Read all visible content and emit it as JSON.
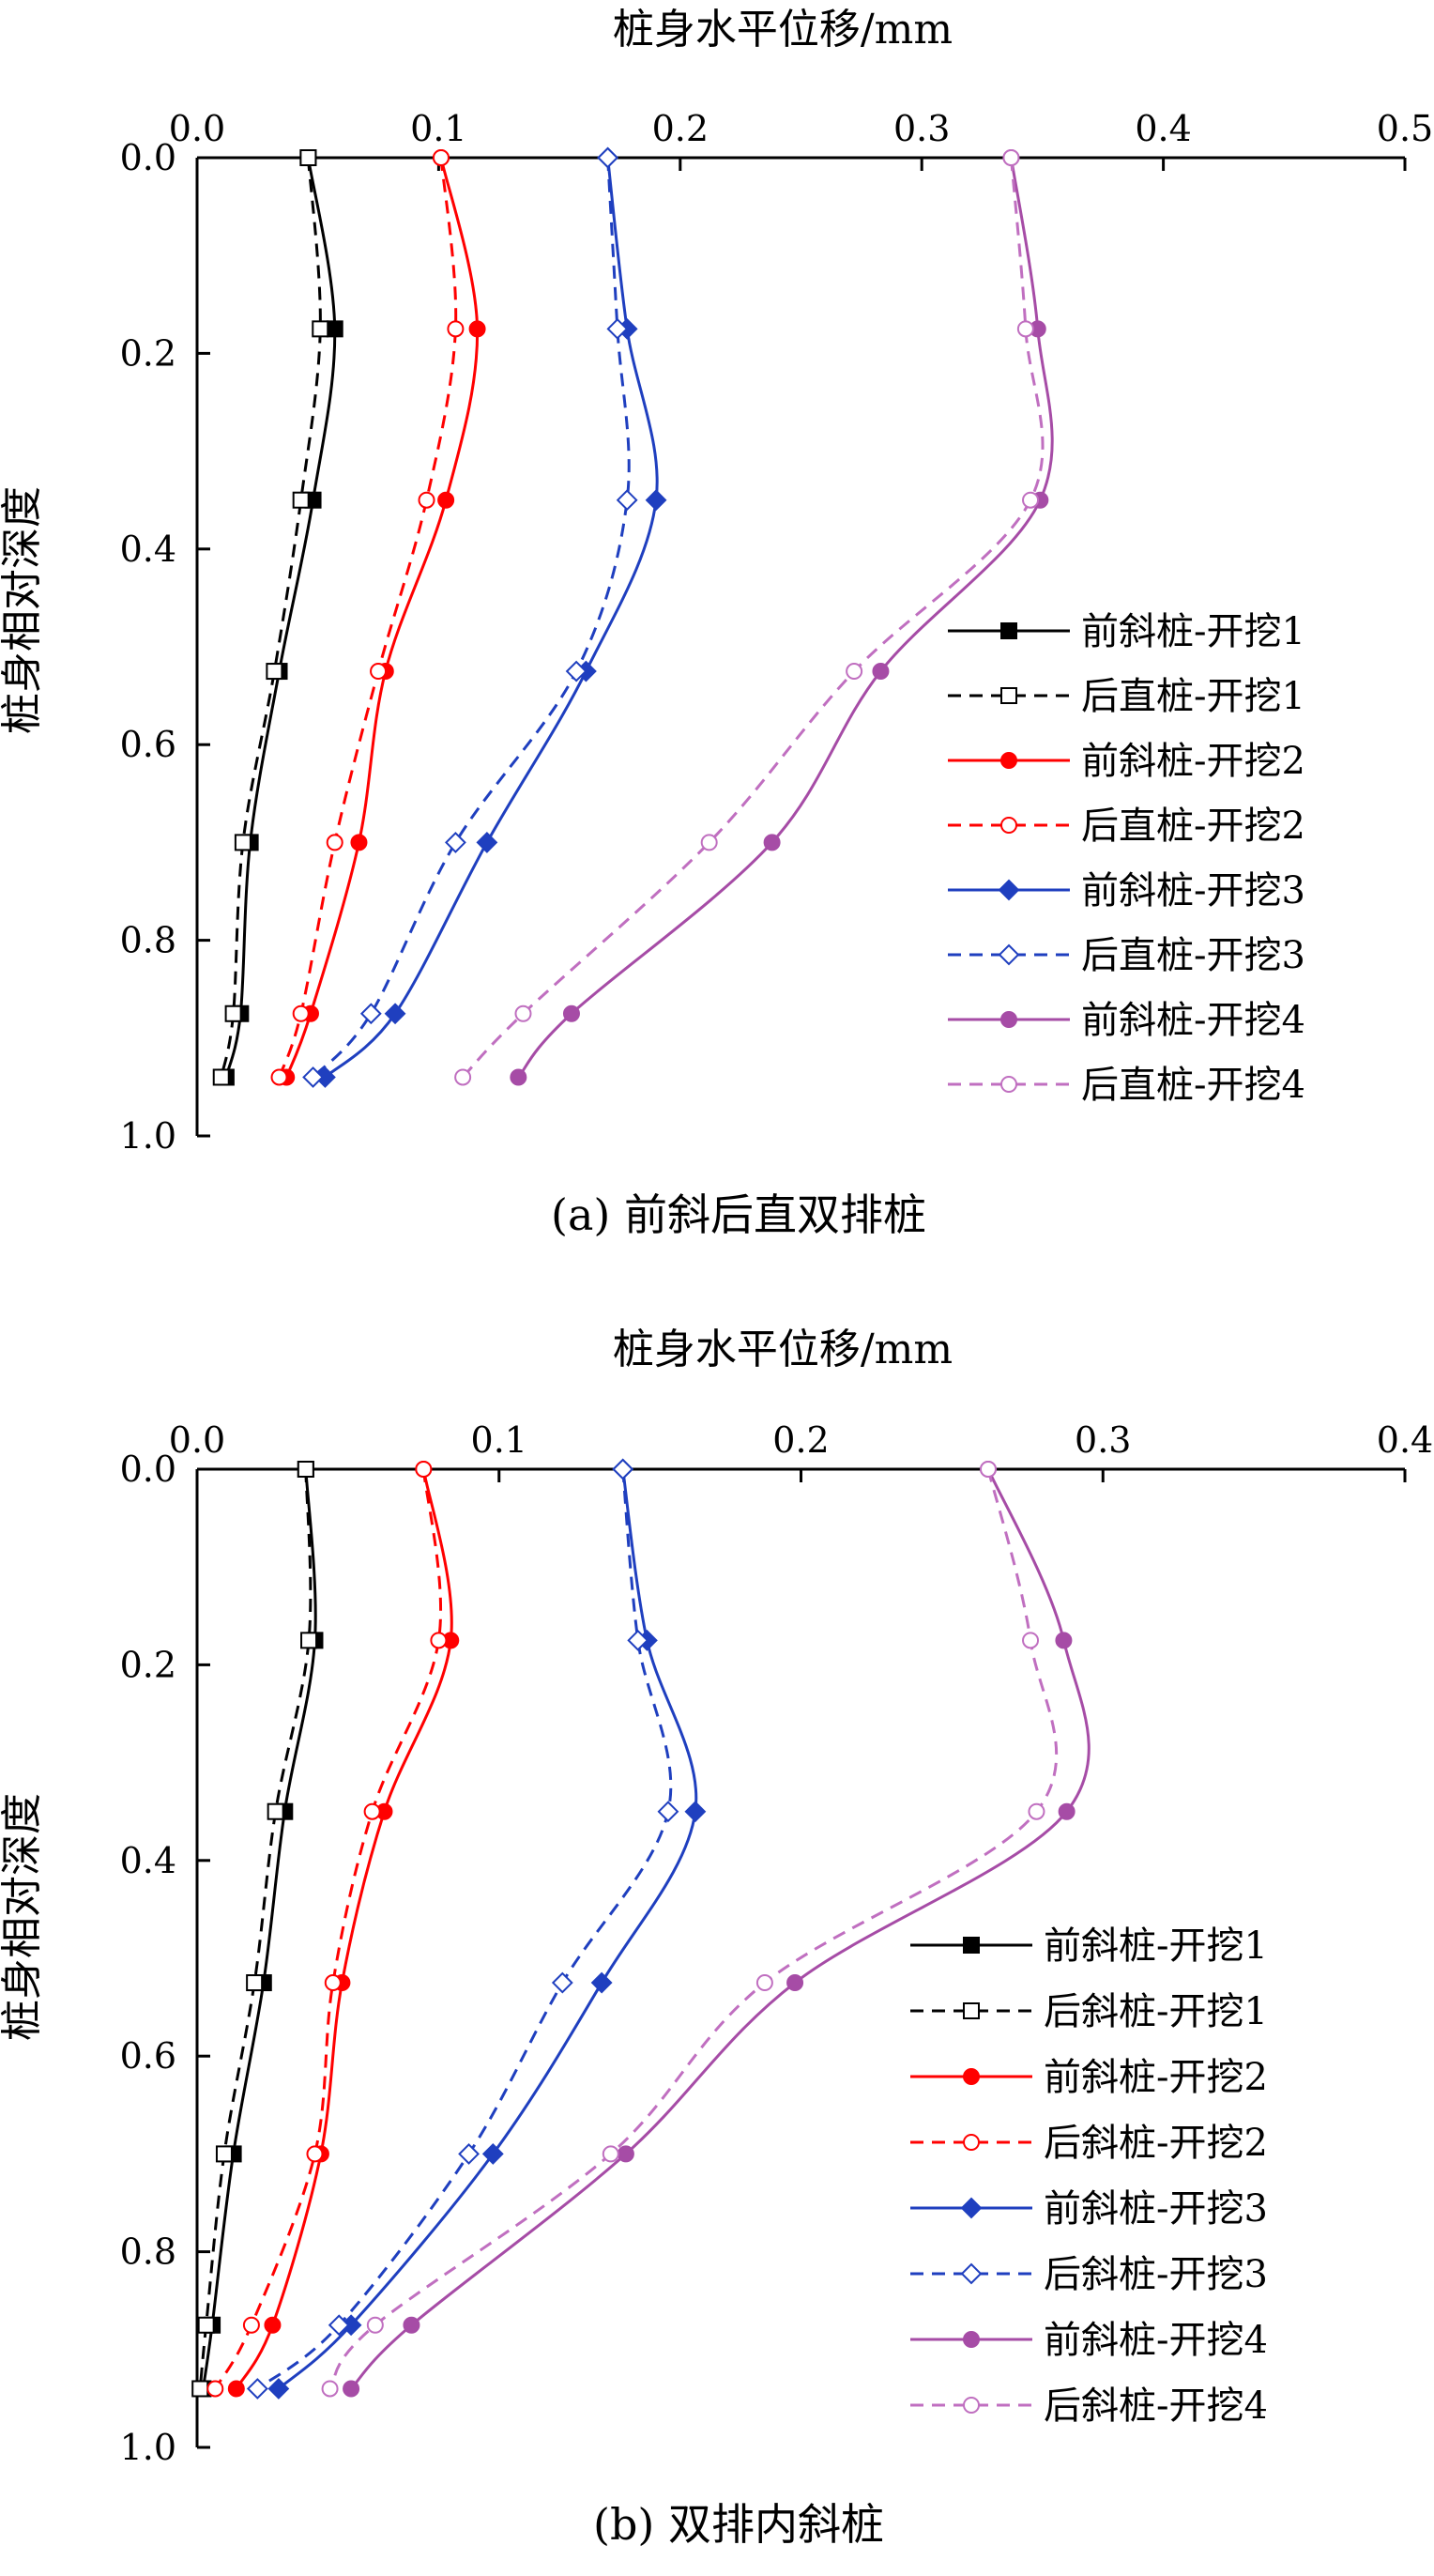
{
  "chart_data": [
    {
      "type": "line",
      "caption": "(a) 前斜后直双排桩",
      "xlabel": "桩身水平位移/mm",
      "ylabel": "桩身相对深度",
      "xlim": [
        0,
        0.5
      ],
      "ylim": [
        0,
        1.0
      ],
      "x_axis_position": "top",
      "y_axis_inverted": true,
      "x_ticks": [
        "0.0",
        "0.1",
        "0.2",
        "0.3",
        "0.4",
        "0.5"
      ],
      "y_ticks": [
        "0.0",
        "0.2",
        "0.4",
        "0.6",
        "0.8",
        "1.0"
      ],
      "legend_position": "right-middle",
      "series": [
        {
          "name": "前斜桩-开挖1",
          "color": "#000000",
          "dash": "solid",
          "marker": "square-filled",
          "depth": [
            0.0,
            0.175,
            0.35,
            0.525,
            0.7,
            0.875,
            0.94
          ],
          "displacement": [
            0.046,
            0.057,
            0.048,
            0.034,
            0.022,
            0.018,
            0.012
          ]
        },
        {
          "name": "后直桩-开挖1",
          "color": "#000000",
          "dash": "dashed",
          "marker": "square-open",
          "depth": [
            0.0,
            0.175,
            0.35,
            0.525,
            0.7,
            0.875,
            0.94
          ],
          "displacement": [
            0.046,
            0.051,
            0.043,
            0.032,
            0.019,
            0.015,
            0.01
          ]
        },
        {
          "name": "前斜桩-开挖2",
          "color": "#ff0000",
          "dash": "solid",
          "marker": "circle-filled",
          "depth": [
            0.0,
            0.175,
            0.35,
            0.525,
            0.7,
            0.875,
            0.94
          ],
          "displacement": [
            0.101,
            0.116,
            0.103,
            0.078,
            0.067,
            0.047,
            0.037
          ]
        },
        {
          "name": "后直桩-开挖2",
          "color": "#ff0000",
          "dash": "dashed",
          "marker": "circle-open",
          "depth": [
            0.0,
            0.175,
            0.35,
            0.525,
            0.7,
            0.875,
            0.94
          ],
          "displacement": [
            0.101,
            0.107,
            0.095,
            0.075,
            0.057,
            0.043,
            0.034
          ]
        },
        {
          "name": "前斜桩-开挖3",
          "color": "#1f3fbf",
          "dash": "solid",
          "marker": "diamond-filled",
          "depth": [
            0.0,
            0.175,
            0.35,
            0.525,
            0.7,
            0.875,
            0.94
          ],
          "displacement": [
            0.17,
            0.178,
            0.19,
            0.161,
            0.12,
            0.082,
            0.053
          ]
        },
        {
          "name": "后直桩-开挖3",
          "color": "#1f3fbf",
          "dash": "dashed",
          "marker": "diamond-open",
          "depth": [
            0.0,
            0.175,
            0.35,
            0.525,
            0.7,
            0.875,
            0.94
          ],
          "displacement": [
            0.17,
            0.174,
            0.178,
            0.157,
            0.107,
            0.072,
            0.048
          ]
        },
        {
          "name": "前斜桩-开挖4",
          "color": "#a64ca6",
          "dash": "solid",
          "marker": "circle-filled",
          "depth": [
            0.0,
            0.175,
            0.35,
            0.525,
            0.7,
            0.875,
            0.94
          ],
          "displacement": [
            0.337,
            0.348,
            0.349,
            0.283,
            0.238,
            0.155,
            0.133
          ]
        },
        {
          "name": "后直桩-开挖4",
          "color": "#c06fc0",
          "dash": "dashed",
          "marker": "circle-open",
          "depth": [
            0.0,
            0.175,
            0.35,
            0.525,
            0.7,
            0.875,
            0.94
          ],
          "displacement": [
            0.337,
            0.343,
            0.345,
            0.272,
            0.212,
            0.135,
            0.11
          ]
        }
      ]
    },
    {
      "type": "line",
      "caption": "(b) 双排内斜桩",
      "xlabel": "桩身水平位移/mm",
      "ylabel": "桩身相对深度",
      "xlim": [
        0,
        0.4
      ],
      "ylim": [
        0,
        1.0
      ],
      "x_axis_position": "top",
      "y_axis_inverted": true,
      "x_ticks": [
        "0.0",
        "0.1",
        "0.2",
        "0.3",
        "0.4"
      ],
      "y_ticks": [
        "0.0",
        "0.2",
        "0.4",
        "0.6",
        "0.8",
        "1.0"
      ],
      "legend_position": "right-bottom",
      "series": [
        {
          "name": "前斜桩-开挖1",
          "color": "#000000",
          "dash": "solid",
          "marker": "square-filled",
          "depth": [
            0.0,
            0.175,
            0.35,
            0.525,
            0.7,
            0.875,
            0.94
          ],
          "displacement": [
            0.036,
            0.039,
            0.029,
            0.022,
            0.012,
            0.005,
            0.002
          ]
        },
        {
          "name": "后斜桩-开挖1",
          "color": "#000000",
          "dash": "dashed",
          "marker": "square-open",
          "depth": [
            0.0,
            0.175,
            0.35,
            0.525,
            0.7,
            0.875,
            0.94
          ],
          "displacement": [
            0.036,
            0.037,
            0.026,
            0.019,
            0.009,
            0.003,
            0.001
          ]
        },
        {
          "name": "前斜桩-开挖2",
          "color": "#ff0000",
          "dash": "solid",
          "marker": "circle-filled",
          "depth": [
            0.0,
            0.175,
            0.35,
            0.525,
            0.7,
            0.875,
            0.94
          ],
          "displacement": [
            0.075,
            0.084,
            0.062,
            0.048,
            0.041,
            0.025,
            0.013
          ]
        },
        {
          "name": "后斜桩-开挖2",
          "color": "#ff0000",
          "dash": "dashed",
          "marker": "circle-open",
          "depth": [
            0.0,
            0.175,
            0.35,
            0.525,
            0.7,
            0.875,
            0.94
          ],
          "displacement": [
            0.075,
            0.08,
            0.058,
            0.045,
            0.039,
            0.018,
            0.006
          ]
        },
        {
          "name": "前斜桩-开挖3",
          "color": "#1f3fbf",
          "dash": "solid",
          "marker": "diamond-filled",
          "depth": [
            0.0,
            0.175,
            0.35,
            0.525,
            0.7,
            0.875,
            0.94
          ],
          "displacement": [
            0.141,
            0.149,
            0.165,
            0.134,
            0.098,
            0.051,
            0.027
          ]
        },
        {
          "name": "后斜桩-开挖3",
          "color": "#1f3fbf",
          "dash": "dashed",
          "marker": "diamond-open",
          "depth": [
            0.0,
            0.175,
            0.35,
            0.525,
            0.7,
            0.875,
            0.94
          ],
          "displacement": [
            0.141,
            0.146,
            0.156,
            0.121,
            0.09,
            0.047,
            0.02
          ]
        },
        {
          "name": "前斜桩-开挖4",
          "color": "#a64ca6",
          "dash": "solid",
          "marker": "circle-filled",
          "depth": [
            0.0,
            0.175,
            0.35,
            0.525,
            0.7,
            0.875,
            0.94
          ],
          "displacement": [
            0.262,
            0.287,
            0.288,
            0.198,
            0.142,
            0.071,
            0.051
          ]
        },
        {
          "name": "后斜桩-开挖4",
          "color": "#c06fc0",
          "dash": "dashed",
          "marker": "circle-open",
          "depth": [
            0.0,
            0.175,
            0.35,
            0.525,
            0.7,
            0.875,
            0.94
          ],
          "displacement": [
            0.262,
            0.276,
            0.278,
            0.188,
            0.137,
            0.059,
            0.044
          ]
        }
      ]
    }
  ]
}
